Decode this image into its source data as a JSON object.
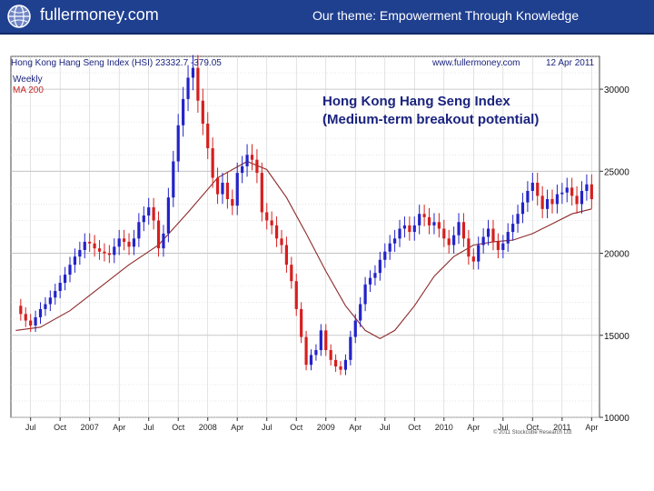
{
  "header": {
    "site": "fullermoney.com",
    "theme": "Our theme: Empowerment Through Knowledge",
    "logo_icon": "globe-icon"
  },
  "chart_data": {
    "type": "candlestick",
    "title": "Hong Kong Hang Seng Index (HSI) 23332.7 -379.05",
    "source": "www.fullermoney.com",
    "date": "12 Apr 2011",
    "legend": [
      "Weekly",
      "MA 200"
    ],
    "annotation": [
      "Hong Kong Hang Seng Index",
      "(Medium-term breakout potential)"
    ],
    "copyright": "© 2011 Stockcube Research Ltd",
    "y_axis": {
      "min": 10000,
      "max": 32000,
      "ticks": [
        10000,
        15000,
        20000,
        25000,
        30000
      ],
      "tick_labels": [
        "10000",
        "15000",
        "20000",
        "25000",
        "30000"
      ],
      "position": "right"
    },
    "x_axis": {
      "ticks": [
        {
          "t": 1.0,
          "label": "Jul"
        },
        {
          "t": 4.0,
          "label": "Oct"
        },
        {
          "t": 7.0,
          "label": "2007"
        },
        {
          "t": 10.0,
          "label": "Apr"
        },
        {
          "t": 13.0,
          "label": "Jul"
        },
        {
          "t": 16.0,
          "label": "Oct"
        },
        {
          "t": 19.0,
          "label": "2008"
        },
        {
          "t": 22.0,
          "label": "Apr"
        },
        {
          "t": 25.0,
          "label": "Jul"
        },
        {
          "t": 28.0,
          "label": "Oct"
        },
        {
          "t": 31.0,
          "label": "2009"
        },
        {
          "t": 34.0,
          "label": "Apr"
        },
        {
          "t": 37.0,
          "label": "Jul"
        },
        {
          "t": 40.0,
          "label": "Oct"
        },
        {
          "t": 43.0,
          "label": "2010"
        },
        {
          "t": 46.0,
          "label": "Apr"
        },
        {
          "t": 49.0,
          "label": "Jul"
        },
        {
          "t": 52.0,
          "label": "Oct"
        },
        {
          "t": 55.0,
          "label": "2011"
        },
        {
          "t": 58.0,
          "label": "Apr"
        }
      ],
      "range": [
        -1.0,
        58.8
      ]
    },
    "series": [
      {
        "name": "Weekly",
        "points": [
          [
            -0.5,
            16800
          ],
          [
            0.0,
            16300
          ],
          [
            0.5,
            15900
          ],
          [
            1.0,
            15600
          ],
          [
            1.5,
            16100
          ],
          [
            2.0,
            16600
          ],
          [
            2.5,
            16900
          ],
          [
            3.0,
            17300
          ],
          [
            3.5,
            17700
          ],
          [
            4.0,
            18200
          ],
          [
            4.5,
            18700
          ],
          [
            5.0,
            19300
          ],
          [
            5.5,
            19800
          ],
          [
            6.0,
            20200
          ],
          [
            6.5,
            20700
          ],
          [
            7.0,
            20600
          ],
          [
            7.5,
            20300
          ],
          [
            8.0,
            20100
          ],
          [
            8.5,
            20000
          ],
          [
            9.0,
            19900
          ],
          [
            9.5,
            20400
          ],
          [
            10.0,
            20900
          ],
          [
            10.5,
            20700
          ],
          [
            11.0,
            20400
          ],
          [
            11.5,
            20900
          ],
          [
            12.0,
            21900
          ],
          [
            12.5,
            22300
          ],
          [
            13.0,
            22800
          ],
          [
            13.5,
            22000
          ],
          [
            14.0,
            20300
          ],
          [
            14.5,
            21200
          ],
          [
            15.0,
            23400
          ],
          [
            15.5,
            25600
          ],
          [
            16.0,
            27800
          ],
          [
            16.5,
            29400
          ],
          [
            17.0,
            30700
          ],
          [
            17.5,
            31300
          ],
          [
            18.0,
            29300
          ],
          [
            18.5,
            27900
          ],
          [
            19.0,
            26400
          ],
          [
            19.5,
            24600
          ],
          [
            20.0,
            23600
          ],
          [
            20.5,
            24300
          ],
          [
            21.0,
            23300
          ],
          [
            21.5,
            22900
          ],
          [
            22.0,
            24900
          ],
          [
            22.5,
            25300
          ],
          [
            23.0,
            26000
          ],
          [
            23.5,
            25700
          ],
          [
            24.0,
            24900
          ],
          [
            24.5,
            22500
          ],
          [
            25.0,
            22000
          ],
          [
            25.5,
            21700
          ],
          [
            26.0,
            20900
          ],
          [
            26.5,
            20500
          ],
          [
            27.0,
            19300
          ],
          [
            27.5,
            18300
          ],
          [
            28.0,
            16600
          ],
          [
            28.5,
            14900
          ],
          [
            29.0,
            13200
          ],
          [
            29.5,
            13800
          ],
          [
            30.0,
            14100
          ],
          [
            30.5,
            15300
          ],
          [
            31.0,
            14100
          ],
          [
            31.5,
            13500
          ],
          [
            32.0,
            13100
          ],
          [
            32.5,
            12900
          ],
          [
            33.0,
            13500
          ],
          [
            33.5,
            14900
          ],
          [
            34.0,
            15900
          ],
          [
            34.5,
            16900
          ],
          [
            35.0,
            18100
          ],
          [
            35.5,
            18500
          ],
          [
            36.0,
            18800
          ],
          [
            36.5,
            19600
          ],
          [
            37.0,
            20100
          ],
          [
            37.5,
            20600
          ],
          [
            38.0,
            20900
          ],
          [
            38.5,
            21500
          ],
          [
            39.0,
            21700
          ],
          [
            39.5,
            21300
          ],
          [
            40.0,
            21700
          ],
          [
            40.5,
            22400
          ],
          [
            41.0,
            22200
          ],
          [
            41.5,
            21700
          ],
          [
            42.0,
            21900
          ],
          [
            42.5,
            21500
          ],
          [
            43.0,
            20900
          ],
          [
            43.5,
            20500
          ],
          [
            44.0,
            21100
          ],
          [
            44.5,
            21900
          ],
          [
            45.0,
            20900
          ],
          [
            45.5,
            19800
          ],
          [
            46.0,
            19500
          ],
          [
            46.5,
            20500
          ],
          [
            47.0,
            21000
          ],
          [
            47.5,
            21500
          ],
          [
            48.0,
            20700
          ],
          [
            48.5,
            20200
          ],
          [
            49.0,
            20600
          ],
          [
            49.5,
            21300
          ],
          [
            50.0,
            21800
          ],
          [
            50.5,
            22400
          ],
          [
            51.0,
            23100
          ],
          [
            51.5,
            23800
          ],
          [
            52.0,
            24300
          ],
          [
            52.5,
            23500
          ],
          [
            53.0,
            22700
          ],
          [
            53.5,
            23300
          ],
          [
            54.0,
            23000
          ],
          [
            54.5,
            23600
          ],
          [
            55.0,
            23700
          ],
          [
            55.5,
            24000
          ],
          [
            56.0,
            23500
          ],
          [
            56.5,
            23000
          ],
          [
            57.0,
            23800
          ],
          [
            57.5,
            24200
          ],
          [
            58.0,
            23300
          ]
        ]
      },
      {
        "name": "MA 200",
        "points": [
          [
            -0.5,
            15300
          ],
          [
            2.0,
            15500
          ],
          [
            5.0,
            16500
          ],
          [
            8.0,
            17900
          ],
          [
            11.0,
            19300
          ],
          [
            14.0,
            20500
          ],
          [
            17.0,
            22500
          ],
          [
            20.0,
            24600
          ],
          [
            23.0,
            25600
          ],
          [
            25.0,
            25100
          ],
          [
            27.0,
            23400
          ],
          [
            29.0,
            21200
          ],
          [
            31.0,
            18900
          ],
          [
            33.0,
            16800
          ],
          [
            35.0,
            15300
          ],
          [
            36.5,
            14800
          ],
          [
            38.0,
            15300
          ],
          [
            40.0,
            16800
          ],
          [
            42.0,
            18600
          ],
          [
            44.0,
            19800
          ],
          [
            46.0,
            20500
          ],
          [
            48.0,
            20700
          ],
          [
            50.0,
            20800
          ],
          [
            52.0,
            21200
          ],
          [
            54.0,
            21800
          ],
          [
            56.0,
            22400
          ],
          [
            58.0,
            22700
          ]
        ]
      }
    ]
  }
}
